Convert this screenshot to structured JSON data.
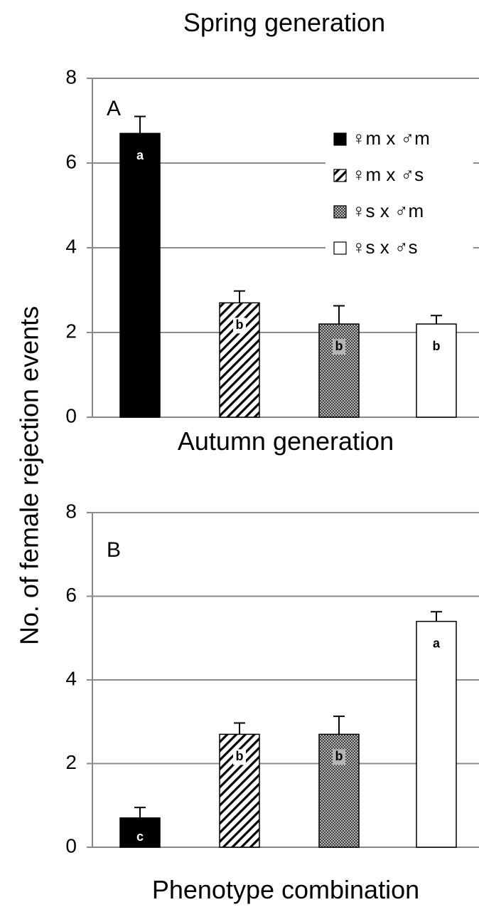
{
  "ylabel": "No. of female rejection events",
  "xlabel": "Phenotype combination",
  "legend": {
    "placement": "top-right of panel A",
    "entries": [
      {
        "label": "♀m x ♂m",
        "fill": "solid-black"
      },
      {
        "label": "♀m x ♂s",
        "fill": "diagonal-hatch"
      },
      {
        "label": "♀s x ♂m",
        "fill": "dotted-gray"
      },
      {
        "label": "♀s x ♂s",
        "fill": "white"
      }
    ]
  },
  "chart_data": [
    {
      "type": "bar",
      "title": "Spring generation",
      "panel": "A",
      "categories": [
        "♀m x ♂m",
        "♀m x ♂s",
        "♀s x ♂m",
        "♀s x ♂s"
      ],
      "values": [
        6.7,
        2.7,
        2.2,
        2.2
      ],
      "errors": [
        0.4,
        0.28,
        0.43,
        0.2
      ],
      "significance": [
        "a",
        "b",
        "b",
        "b"
      ],
      "ylim": [
        0,
        8
      ],
      "yticks": [
        "0",
        "2",
        "4",
        "6",
        "8"
      ],
      "grid": true
    },
    {
      "type": "bar",
      "title": "Autumn generation",
      "panel": "B",
      "categories": [
        "♀m x ♂m",
        "♀m x ♂s",
        "♀s x ♂m",
        "♀s x ♂s"
      ],
      "values": [
        0.7,
        2.7,
        2.7,
        5.4
      ],
      "errors": [
        0.25,
        0.27,
        0.43,
        0.23
      ],
      "significance": [
        "c",
        "b",
        "b",
        "a"
      ],
      "ylim": [
        0,
        8
      ],
      "yticks": [
        "0",
        "2",
        "4",
        "6",
        "8"
      ],
      "grid": true
    }
  ]
}
